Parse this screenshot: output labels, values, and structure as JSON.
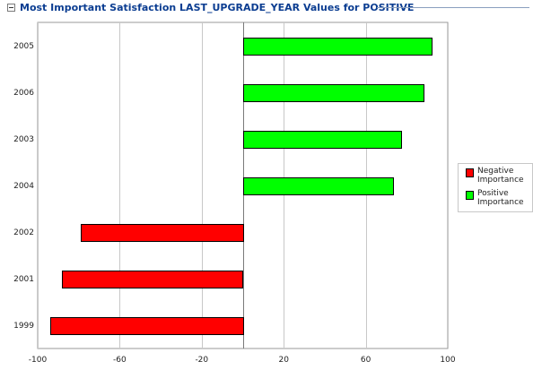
{
  "header": {
    "title": "Most Important Satisfaction LAST_UPGRADE_YEAR Values for POSITIVE",
    "toggle_icon": "minus-square-icon"
  },
  "legend": {
    "items": [
      {
        "label_line1": "Negative",
        "label_line2": "Importance",
        "color": "#ff0000"
      },
      {
        "label_line1": "Positive",
        "label_line2": "Importance",
        "color": "#00ff00"
      }
    ]
  },
  "chart_data": {
    "type": "bar",
    "orientation": "horizontal",
    "categories": [
      "2005",
      "2006",
      "2003",
      "2004",
      "2002",
      "2001",
      "1999"
    ],
    "series": [
      {
        "name": "Negative Importance",
        "color": "#ff0000",
        "values": [
          null,
          null,
          null,
          null,
          -79,
          -88,
          -94
        ]
      },
      {
        "name": "Positive Importance",
        "color": "#00ff00",
        "values": [
          92,
          88,
          77,
          73,
          null,
          null,
          null
        ]
      }
    ],
    "xlim": [
      -100,
      100
    ],
    "xticks": [
      -100,
      -60,
      -20,
      20,
      60,
      100
    ],
    "grid": true,
    "legend_position": "right"
  }
}
